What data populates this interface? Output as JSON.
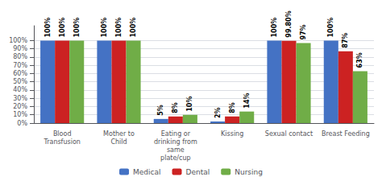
{
  "chart_data": {
    "type": "bar",
    "categories": [
      "Blood\nTransfusion",
      "Mother to\nChild",
      "Eating or\ndrinking from\nsame\nplate/cup",
      "Kissing",
      "Sexual contact",
      "Breast Feeding"
    ],
    "series": [
      {
        "name": "Medical",
        "color": "#4472c4",
        "values": [
          100,
          100,
          5,
          2,
          100,
          100
        ],
        "value_labels": [
          "100%",
          "100%",
          "5%",
          "2%",
          "100%",
          "100%"
        ]
      },
      {
        "name": "Dental",
        "color": "#cc2222",
        "values": [
          100,
          100,
          8,
          8,
          99.8,
          87
        ],
        "value_labels": [
          "100%",
          "100%",
          "8%",
          "8%",
          "99.80%",
          "87%"
        ]
      },
      {
        "name": "Nursing",
        "color": "#70ad47",
        "values": [
          100,
          100,
          10,
          14,
          97,
          63
        ],
        "value_labels": [
          "100%",
          "100%",
          "10%",
          "14%",
          "97%",
          "63%"
        ]
      }
    ],
    "ylim": [
      0,
      118
    ],
    "yticks": [
      {
        "value": 0,
        "label": "0%"
      },
      {
        "value": 10,
        "label": "10%"
      },
      {
        "value": 20,
        "label": "20%"
      },
      {
        "value": 30,
        "label": "30%"
      },
      {
        "value": 40,
        "label": "40%"
      },
      {
        "value": 50,
        "label": "50%"
      },
      {
        "value": 60,
        "label": "60%"
      },
      {
        "value": 70,
        "label": "70%"
      },
      {
        "value": 80,
        "label": "80%"
      },
      {
        "value": 90,
        "label": "90%"
      },
      {
        "value": 100,
        "label": "100%"
      }
    ],
    "grid": true,
    "legend": "bottom",
    "data_labels": true
  }
}
